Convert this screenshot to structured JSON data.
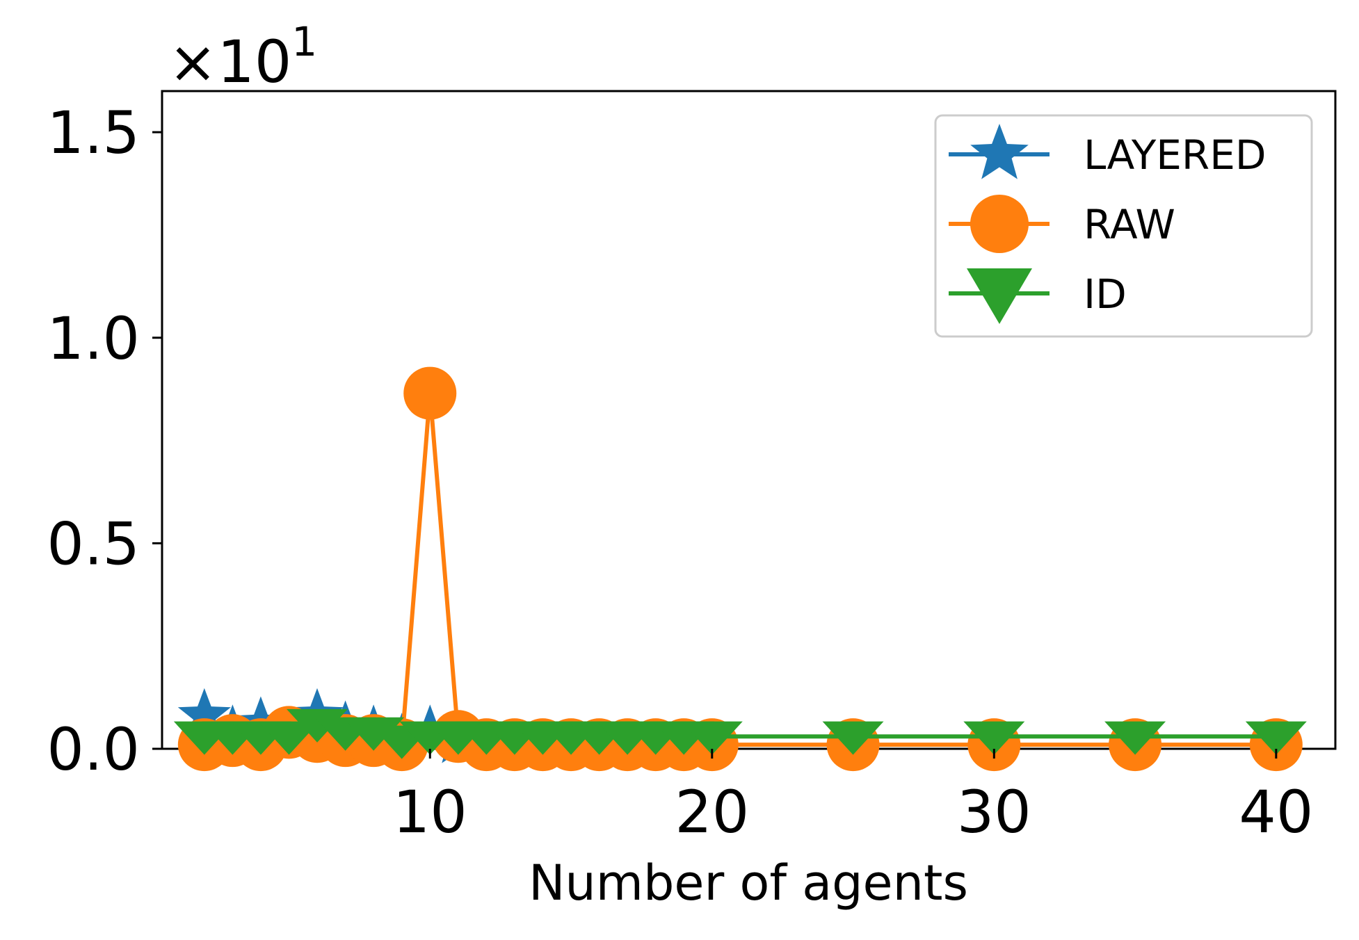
{
  "chart_data": {
    "type": "line",
    "xlabel": "Number of agents",
    "ylabel": "",
    "offset_base": "×10",
    "offset_exponent": "1",
    "scale": 10,
    "xlim": [
      0.5,
      42.1
    ],
    "ylim": [
      0,
      1.6
    ],
    "xticks": [
      10,
      20,
      30,
      40
    ],
    "xtick_labels": [
      "10",
      "20",
      "30",
      "40"
    ],
    "yticks": [
      0.0,
      0.5,
      1.0,
      1.5
    ],
    "ytick_labels": [
      "0.0",
      "0.5",
      "1.0",
      "1.5"
    ],
    "legend_position": "top-right",
    "series": [
      {
        "name": "LAYERED",
        "color": "#1f77b4",
        "marker": "star",
        "x": [
          2,
          3,
          4,
          5,
          6,
          7,
          8,
          9,
          10,
          11
        ],
        "y": [
          0.08,
          0.04,
          0.06,
          0.03,
          0.08,
          0.05,
          0.04,
          0.02,
          0.04,
          0.02
        ]
      },
      {
        "name": "RAW",
        "color": "#ff7f0e",
        "marker": "circle",
        "x": [
          2,
          3,
          4,
          5,
          6,
          7,
          8,
          9,
          10,
          11,
          12,
          13,
          14,
          15,
          16,
          17,
          18,
          19,
          20,
          25,
          30,
          35,
          40
        ],
        "y": [
          0.01,
          0.02,
          0.01,
          0.04,
          0.03,
          0.02,
          0.02,
          0.01,
          0.865,
          0.03,
          0.01,
          0.01,
          0.01,
          0.01,
          0.01,
          0.01,
          0.01,
          0.01,
          0.01,
          0.01,
          0.01,
          0.01,
          0.01
        ]
      },
      {
        "name": "ID",
        "color": "#2ca02c",
        "marker": "triangle-down",
        "x": [
          2,
          3,
          4,
          5,
          6,
          7,
          8,
          9,
          10,
          11,
          12,
          13,
          14,
          15,
          16,
          17,
          18,
          19,
          20,
          25,
          30,
          35,
          40
        ],
        "y": [
          0.03,
          0.03,
          0.03,
          0.03,
          0.06,
          0.04,
          0.04,
          0.02,
          0.03,
          0.03,
          0.03,
          0.03,
          0.03,
          0.03,
          0.03,
          0.03,
          0.03,
          0.03,
          0.03,
          0.03,
          0.03,
          0.03,
          0.03
        ]
      }
    ]
  }
}
